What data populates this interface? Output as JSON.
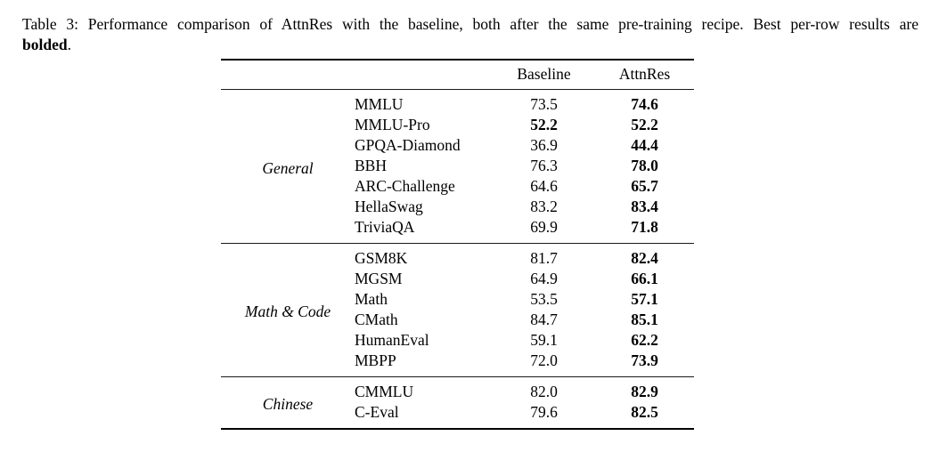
{
  "caption": {
    "label_and_text": "Table 3: Performance comparison of AttnRes with the baseline, both after the same pre-training recipe. Best per-row results are",
    "bold_word": "bolded",
    "suffix": "."
  },
  "table": {
    "columns": {
      "baseline": "Baseline",
      "attnres": "AttnRes"
    },
    "sections": [
      {
        "group": "General",
        "rows": [
          {
            "benchmark": "MMLU",
            "baseline": "73.5",
            "attnres": "74.6",
            "baseline_bold": false,
            "attnres_bold": true
          },
          {
            "benchmark": "MMLU-Pro",
            "baseline": "52.2",
            "attnres": "52.2",
            "baseline_bold": true,
            "attnres_bold": true
          },
          {
            "benchmark": "GPQA-Diamond",
            "baseline": "36.9",
            "attnres": "44.4",
            "baseline_bold": false,
            "attnres_bold": true
          },
          {
            "benchmark": "BBH",
            "baseline": "76.3",
            "attnres": "78.0",
            "baseline_bold": false,
            "attnres_bold": true
          },
          {
            "benchmark": "ARC-Challenge",
            "baseline": "64.6",
            "attnres": "65.7",
            "baseline_bold": false,
            "attnres_bold": true
          },
          {
            "benchmark": "HellaSwag",
            "baseline": "83.2",
            "attnres": "83.4",
            "baseline_bold": false,
            "attnres_bold": true
          },
          {
            "benchmark": "TriviaQA",
            "baseline": "69.9",
            "attnres": "71.8",
            "baseline_bold": false,
            "attnres_bold": true
          }
        ]
      },
      {
        "group": "Math & Code",
        "rows": [
          {
            "benchmark": "GSM8K",
            "baseline": "81.7",
            "attnres": "82.4",
            "baseline_bold": false,
            "attnres_bold": true
          },
          {
            "benchmark": "MGSM",
            "baseline": "64.9",
            "attnres": "66.1",
            "baseline_bold": false,
            "attnres_bold": true
          },
          {
            "benchmark": "Math",
            "baseline": "53.5",
            "attnres": "57.1",
            "baseline_bold": false,
            "attnres_bold": true
          },
          {
            "benchmark": "CMath",
            "baseline": "84.7",
            "attnres": "85.1",
            "baseline_bold": false,
            "attnres_bold": true
          },
          {
            "benchmark": "HumanEval",
            "baseline": "59.1",
            "attnres": "62.2",
            "baseline_bold": false,
            "attnres_bold": true
          },
          {
            "benchmark": "MBPP",
            "baseline": "72.0",
            "attnres": "73.9",
            "baseline_bold": false,
            "attnres_bold": true
          }
        ]
      },
      {
        "group": "Chinese",
        "rows": [
          {
            "benchmark": "CMMLU",
            "baseline": "82.0",
            "attnres": "82.9",
            "baseline_bold": false,
            "attnres_bold": true
          },
          {
            "benchmark": "C-Eval",
            "baseline": "79.6",
            "attnres": "82.5",
            "baseline_bold": false,
            "attnres_bold": true
          }
        ]
      }
    ]
  }
}
